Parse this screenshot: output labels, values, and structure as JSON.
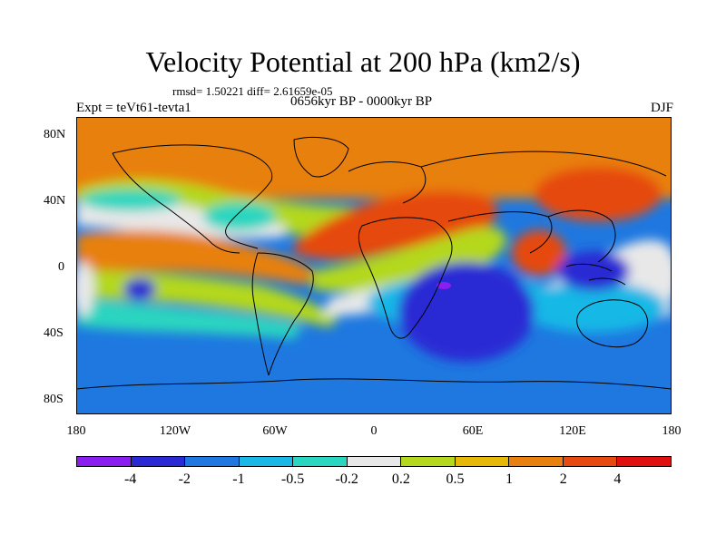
{
  "title": "Velocity Potential at 200 hPa (km2/s)",
  "stats": "rmsd= 1.50221 diff= 2.61659e-05",
  "expt_label": "Expt = teVt61-tevta1",
  "period_label": "0656kyr BP - 0000kyr BP",
  "season_label": "DJF",
  "y_ticks": [
    "80N",
    "40N",
    "0",
    "40S",
    "80S"
  ],
  "x_ticks": [
    "180",
    "120W",
    "60W",
    "0",
    "60E",
    "120E",
    "180"
  ],
  "colorbar": {
    "colors": [
      "#8a1ef0",
      "#2a2ad4",
      "#1e78e0",
      "#19b8e6",
      "#2ad6c0",
      "#e8e8e8",
      "#b4d81e",
      "#e6b80a",
      "#e88010",
      "#e64a10",
      "#e01010"
    ],
    "labels": [
      "-4",
      "-2",
      "-1",
      "-0.5",
      "-0.2",
      "0.2",
      "0.5",
      "1",
      "2",
      "4"
    ]
  }
}
